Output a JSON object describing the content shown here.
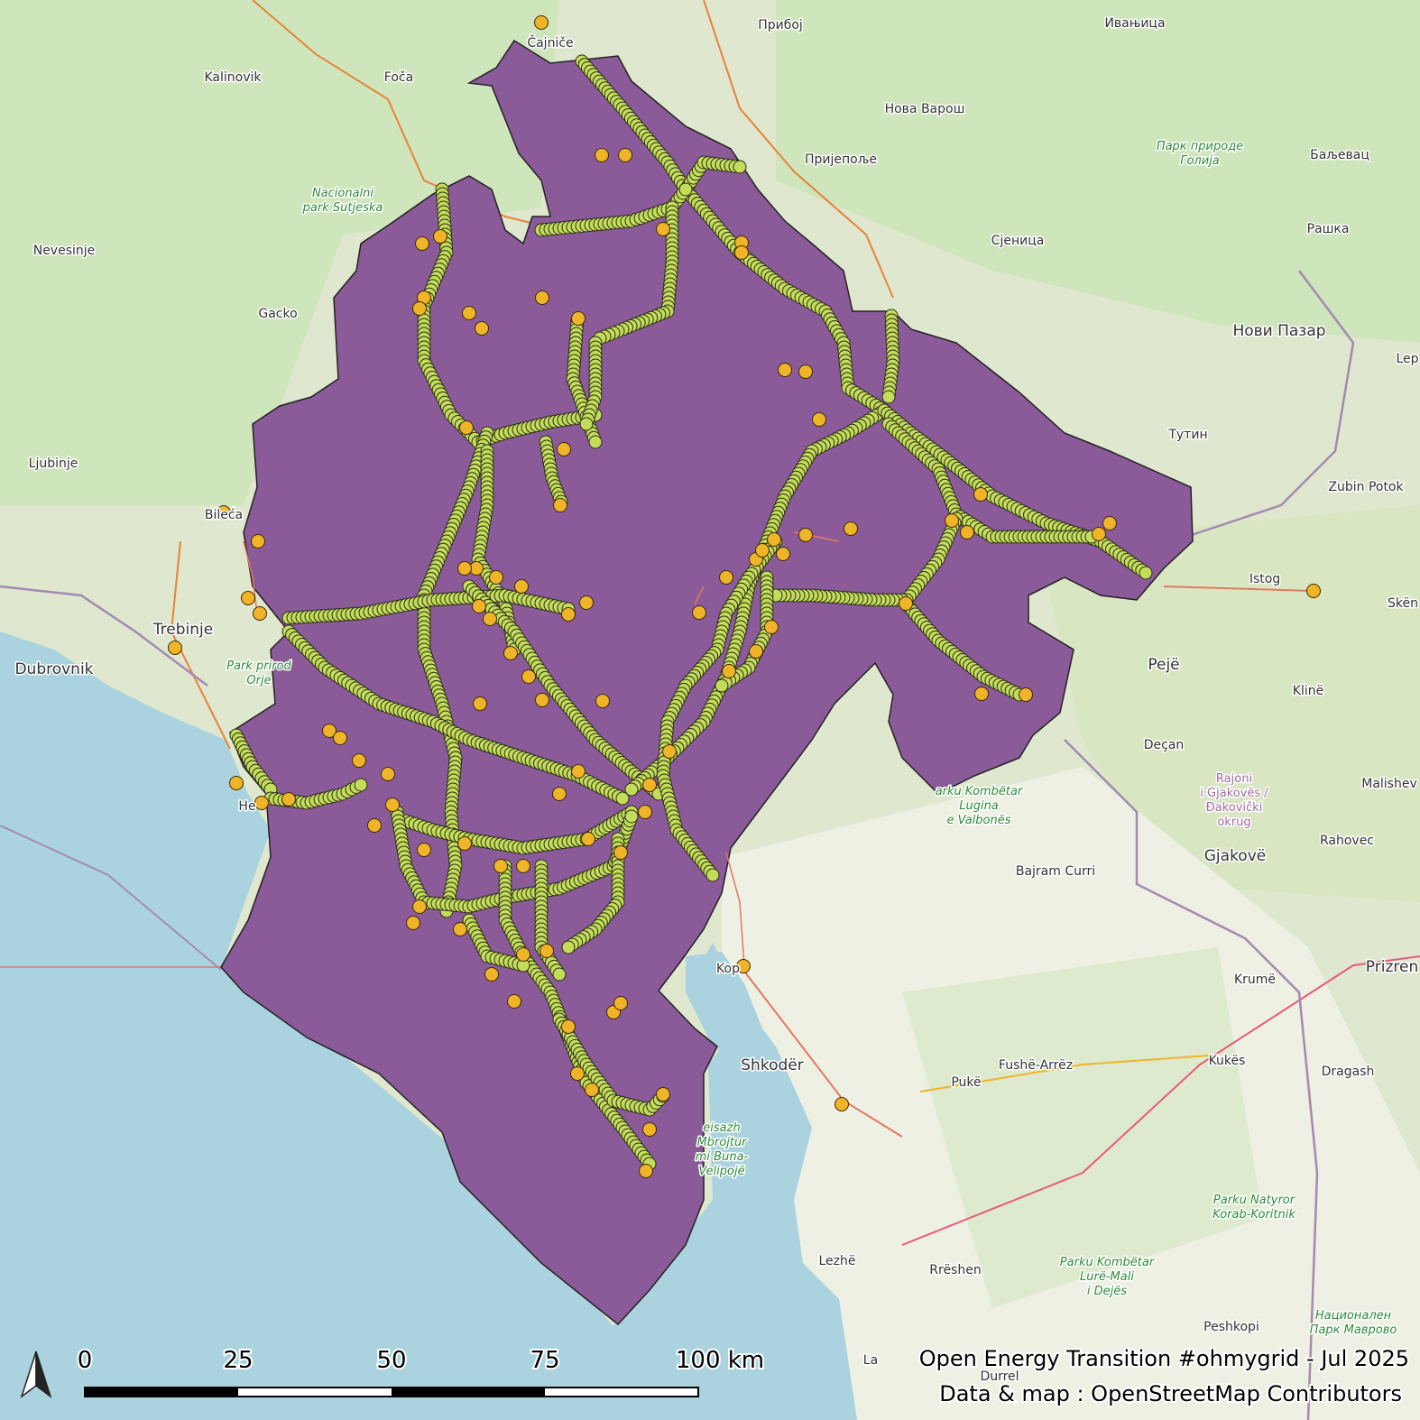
{
  "map": {
    "region_fill": "#8b5a99",
    "water_color": "#aad3df",
    "land_color": "#dfe8cf",
    "forest_color": "#cbe3b5",
    "power_line_color": "#e07a5f",
    "substation_color": "#f0b429",
    "tower_color": "#c3dd5a"
  },
  "places": [
    {
      "id": "cajnice",
      "text": "Čajniče"
    },
    {
      "id": "priboj",
      "text": "Прибој"
    },
    {
      "id": "ivanjica",
      "text": "Ивањица"
    },
    {
      "id": "kalinovik",
      "text": "Kalinovik"
    },
    {
      "id": "foca",
      "text": "Foča"
    },
    {
      "id": "nova-varos",
      "text": "Нова Варош"
    },
    {
      "id": "prijepolje",
      "text": "Пријепоље"
    },
    {
      "id": "baljevac",
      "text": "Баљевац"
    },
    {
      "id": "raska",
      "text": "Рашка"
    },
    {
      "id": "nevesinje",
      "text": "Nevesinje"
    },
    {
      "id": "sjenica",
      "text": "Сјеница"
    },
    {
      "id": "gacko",
      "text": "Gacko"
    },
    {
      "id": "novi-pazar",
      "text": "Нови Пазар"
    },
    {
      "id": "tutin",
      "text": "Тутин"
    },
    {
      "id": "ljubinje",
      "text": "Ljubinje"
    },
    {
      "id": "zubin-potok",
      "text": "Zubin Potok"
    },
    {
      "id": "bileca",
      "text": "Bileća"
    },
    {
      "id": "istog",
      "text": "Istog"
    },
    {
      "id": "trebinje",
      "text": "Trebinje"
    },
    {
      "id": "dubrovnik",
      "text": "Dubrovnik"
    },
    {
      "id": "peje",
      "text": "Pejë"
    },
    {
      "id": "kline",
      "text": "Klinë"
    },
    {
      "id": "decan",
      "text": "Deçan"
    },
    {
      "id": "malishev",
      "text": "Malishev"
    },
    {
      "id": "rahovec",
      "text": "Rahovec"
    },
    {
      "id": "gjakove",
      "text": "Gjakovë"
    },
    {
      "id": "bajram-curri",
      "text": "Bajram Curri"
    },
    {
      "id": "koplik",
      "text": "Kop"
    },
    {
      "id": "krume",
      "text": "Krumë"
    },
    {
      "id": "prizren",
      "text": "Prizren"
    },
    {
      "id": "shkoder",
      "text": "Shkodër"
    },
    {
      "id": "fushe-arrez",
      "text": "Fushë-Arrëz"
    },
    {
      "id": "puke",
      "text": "Pukë"
    },
    {
      "id": "kukes",
      "text": "Kukës"
    },
    {
      "id": "dragash",
      "text": "Dragash"
    },
    {
      "id": "lezhe",
      "text": "Lezhë"
    },
    {
      "id": "rreshen",
      "text": "Rrëshen"
    },
    {
      "id": "peshkopi",
      "text": "Peshkopi"
    },
    {
      "id": "herceg",
      "text": "He"
    },
    {
      "id": "skenderaj",
      "text": "Skën"
    },
    {
      "id": "lep",
      "text": "Lep"
    },
    {
      "id": "la",
      "text": "La"
    },
    {
      "id": "durres",
      "text": "Durrel"
    }
  ],
  "parks": [
    {
      "id": "sutjeska",
      "lines": [
        "Nacionalni",
        "park Sutjeska"
      ]
    },
    {
      "id": "golija",
      "lines": [
        "Парк природе",
        "Голија"
      ]
    },
    {
      "id": "orjen",
      "lines": [
        "Park prirod",
        "Orje"
      ]
    },
    {
      "id": "valbones",
      "lines": [
        "arku Kombëtar",
        "Lugina",
        "e Valbonës"
      ]
    },
    {
      "id": "buna",
      "lines": [
        "eisazh",
        "Mbrojtur",
        "mi Buna-",
        "Velipojë"
      ]
    },
    {
      "id": "korab",
      "lines": [
        "Parku Natyror",
        "Korab-Koritnik"
      ]
    },
    {
      "id": "lure",
      "lines": [
        "Parku Kombëtar",
        "Lurë-Mali",
        "i Dejës"
      ]
    },
    {
      "id": "mavrovo",
      "lines": [
        "Национален",
        "Парк Маврово"
      ]
    }
  ],
  "regions": [
    {
      "id": "gjakoves",
      "lines": [
        "Rajoni",
        "i Gjakovës /",
        "Đakovički",
        "okrug"
      ]
    }
  ],
  "scale_bar": {
    "ticks": [
      "0",
      "25",
      "50",
      "75",
      "100 km"
    ]
  },
  "credits": {
    "line1": "Open Energy Transition #ohmygrid - Jul 2025",
    "line2": "Data & map : OpenStreetMap Contributors"
  }
}
